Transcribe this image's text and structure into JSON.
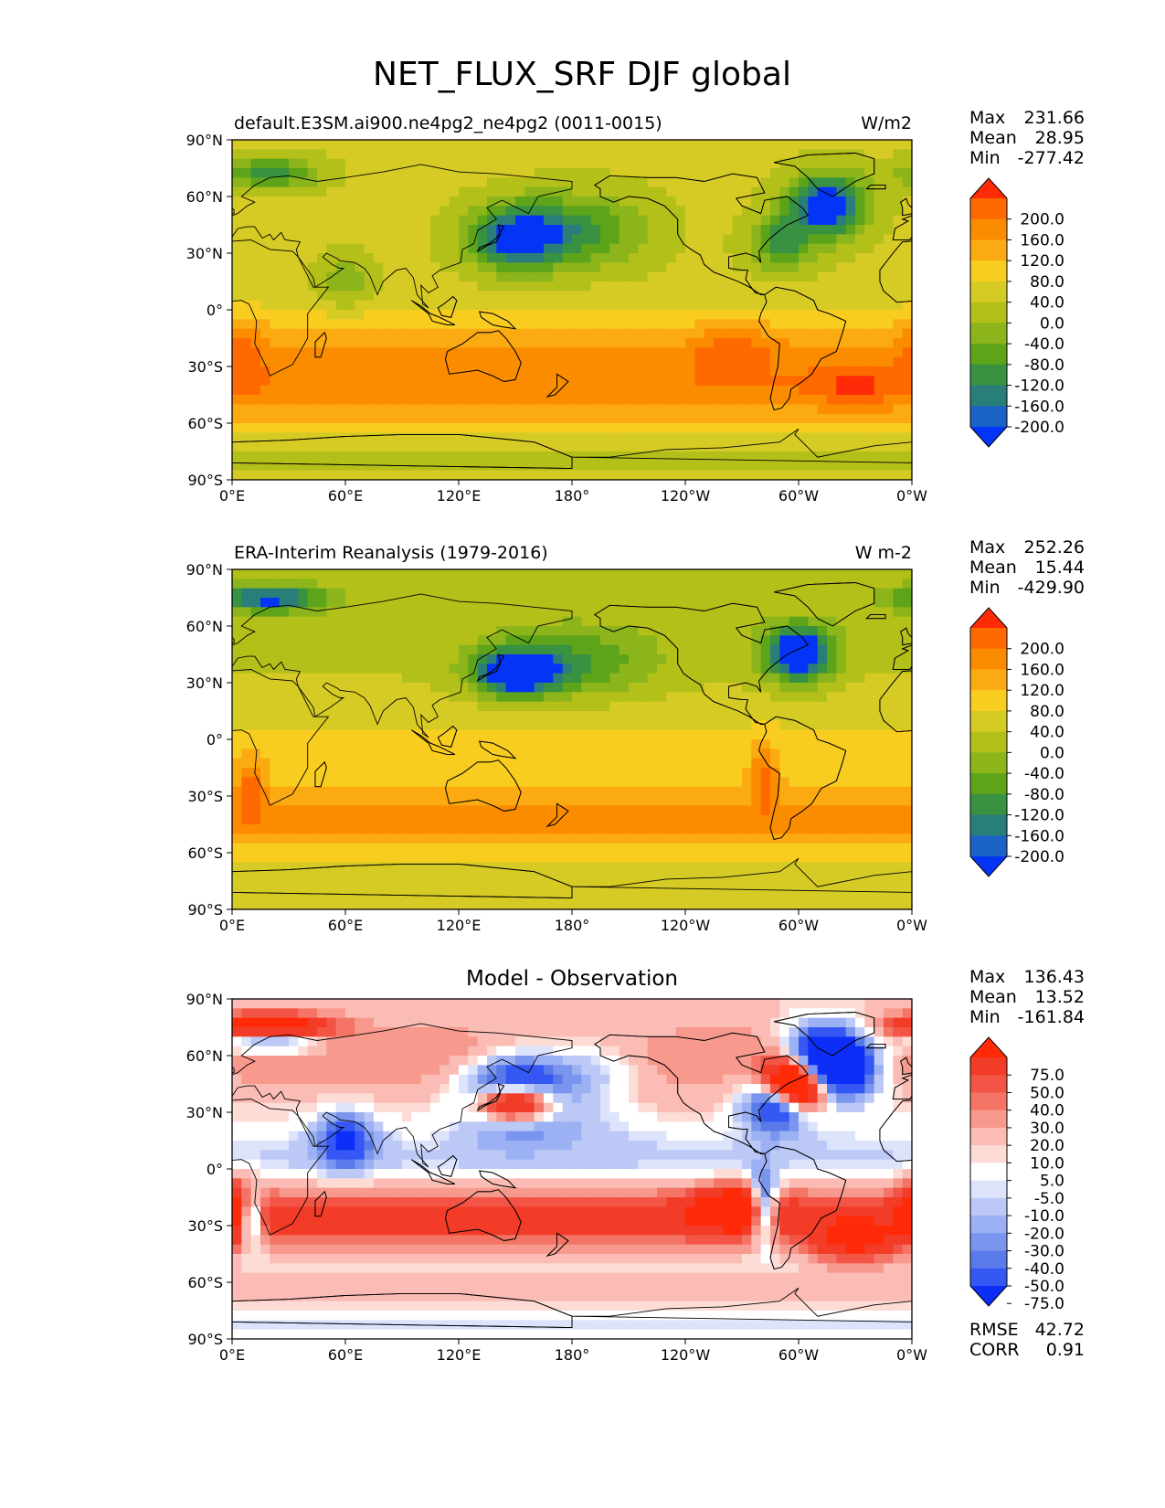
{
  "figure": {
    "title": "NET_FLUX_SRF DJF global",
    "x_ticks": [
      "0°E",
      "60°E",
      "120°E",
      "180°",
      "120°W",
      "60°W",
      "0°W"
    ],
    "y_ticks": [
      "90°N",
      "60°N",
      "30°N",
      "0°",
      "30°S",
      "60°S",
      "90°S"
    ]
  },
  "chart_data": [
    {
      "type": "heatmap",
      "title": "default.E3SM.ai900.ne4pg2_ne4pg2 (0011-0015)",
      "units": "W/m2",
      "stats": {
        "max": "231.66",
        "mean": "28.95",
        "min": "-277.42"
      },
      "colorbar": {
        "labels": [
          "200.0",
          "160.0",
          "120.0",
          "80.0",
          "40.0",
          "0.0",
          "-40.0",
          "-80.0",
          "-120.0",
          "-160.0",
          "-200.0"
        ],
        "colors": [
          "#ff2a08",
          "#ff6a00",
          "#fb8c00",
          "#fbaa12",
          "#f8cd20",
          "#d6cb24",
          "#b3c019",
          "#8bb51a",
          "#5ea41a",
          "#399142",
          "#2a7e7a",
          "#1a62c4",
          "#0435f7"
        ]
      },
      "xlim": [
        0,
        360
      ],
      "ylim": [
        -90,
        90
      ]
    },
    {
      "type": "heatmap",
      "title": "ERA-Interim Reanalysis (1979-2016)",
      "units": "W m-2",
      "stats": {
        "max": "252.26",
        "mean": "15.44",
        "min": "-429.90"
      },
      "colorbar": {
        "labels": [
          "200.0",
          "160.0",
          "120.0",
          "80.0",
          "40.0",
          "0.0",
          "-40.0",
          "-80.0",
          "-120.0",
          "-160.0",
          "-200.0"
        ],
        "colors": [
          "#ff2a08",
          "#ff6a00",
          "#fb8c00",
          "#fbaa12",
          "#f8cd20",
          "#d6cb24",
          "#b3c019",
          "#8bb51a",
          "#5ea41a",
          "#399142",
          "#2a7e7a",
          "#1a62c4",
          "#0435f7"
        ]
      },
      "xlim": [
        0,
        360
      ],
      "ylim": [
        -90,
        90
      ]
    },
    {
      "type": "heatmap",
      "title": "Model - Observation",
      "units": "",
      "stats": {
        "max": "136.43",
        "mean": "13.52",
        "min": "-161.84"
      },
      "extra_stats": {
        "rmse": "42.72",
        "corr": "0.91"
      },
      "colorbar": {
        "labels": [
          "75.0",
          "50.0",
          "40.0",
          "30.0",
          "20.0",
          "10.0",
          "5.0",
          "-5.0",
          "-10.0",
          "-20.0",
          "-30.0",
          "-40.0",
          "-50.0",
          "-75.0"
        ],
        "colors": [
          "#ff2a08",
          "#f23c28",
          "#f25545",
          "#f47565",
          "#f79a8d",
          "#fabcb4",
          "#fddcd6",
          "#ffffff",
          "#dde3fb",
          "#bcc8f6",
          "#9cb1f3",
          "#7a95ee",
          "#5a7ae9",
          "#3557f4",
          "#0d2ef7"
        ]
      },
      "xlim": [
        0,
        360
      ],
      "ylim": [
        -90,
        90
      ]
    }
  ]
}
